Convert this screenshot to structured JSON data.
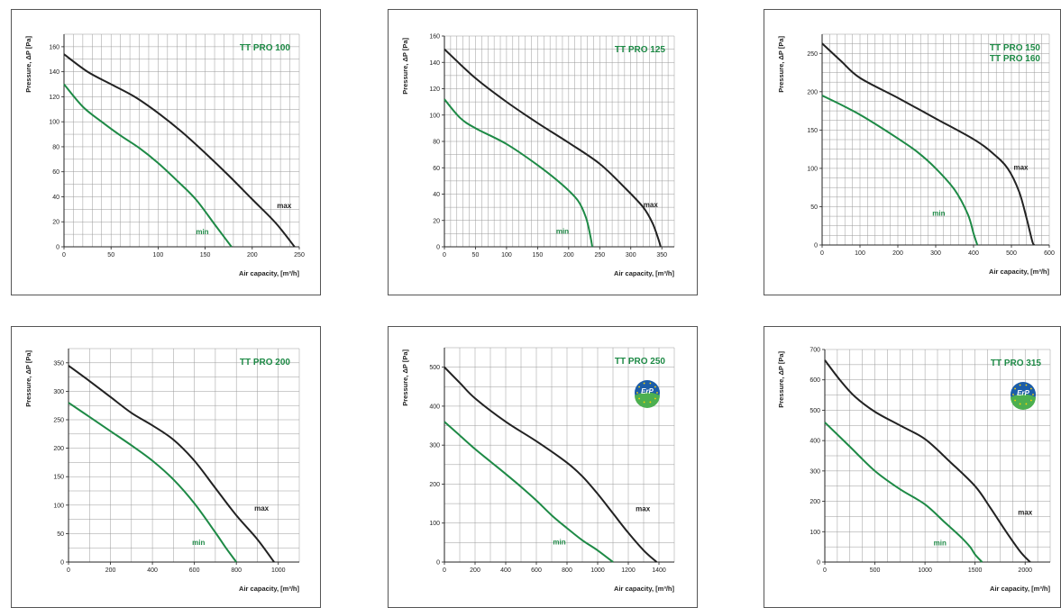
{
  "chart_data": [
    {
      "type": "line",
      "title": "TT PRO 100",
      "title_lines": [
        "TT PRO 100"
      ],
      "xlabel": "Air capacity, [m³/h]",
      "ylabel": "Pressure, ΔP [Pa]",
      "xlim": [
        0,
        250
      ],
      "ylim": [
        0,
        170
      ],
      "xticks": [
        0,
        50,
        100,
        150,
        200,
        250
      ],
      "yticks": [
        0,
        20,
        40,
        60,
        80,
        100,
        120,
        140,
        160
      ],
      "x_minor": 10,
      "y_minor": 10,
      "erp_badge": false,
      "series": [
        {
          "name": "max",
          "label_at": [
            234,
            31
          ],
          "points": [
            [
              0,
              154
            ],
            [
              25,
              140
            ],
            [
              50,
              130
            ],
            [
              75,
              120
            ],
            [
              100,
              107
            ],
            [
              125,
              92
            ],
            [
              150,
              75
            ],
            [
              175,
              57
            ],
            [
              200,
              38
            ],
            [
              225,
              19
            ],
            [
              245,
              0
            ]
          ]
        },
        {
          "name": "min",
          "label_at": [
            147,
            10
          ],
          "points": [
            [
              0,
              130
            ],
            [
              20,
              112
            ],
            [
              40,
              100
            ],
            [
              60,
              89
            ],
            [
              80,
              79
            ],
            [
              100,
              67
            ],
            [
              120,
              53
            ],
            [
              140,
              38
            ],
            [
              160,
              18
            ],
            [
              172,
              6
            ],
            [
              178,
              0
            ]
          ]
        }
      ]
    },
    {
      "type": "line",
      "title": "TT PRO 125",
      "title_lines": [
        "TT PRO 125"
      ],
      "xlabel": "Air capacity, [m³/h]",
      "ylabel": "Pressure, ΔP [Pa]",
      "xlim": [
        0,
        370
      ],
      "ylim": [
        0,
        160
      ],
      "xticks": [
        0,
        50,
        100,
        150,
        200,
        250,
        300,
        350
      ],
      "yticks": [
        0,
        20,
        40,
        60,
        80,
        100,
        120,
        140,
        160
      ],
      "x_minor": 10,
      "y_minor": 10,
      "erp_badge": false,
      "series": [
        {
          "name": "max",
          "label_at": [
            332,
            30
          ],
          "points": [
            [
              0,
              150
            ],
            [
              50,
              128
            ],
            [
              100,
              110
            ],
            [
              150,
              94
            ],
            [
              200,
              79
            ],
            [
              250,
              63
            ],
            [
              290,
              45
            ],
            [
              320,
              30
            ],
            [
              335,
              18
            ],
            [
              345,
              5
            ],
            [
              348,
              0
            ]
          ]
        },
        {
          "name": "min",
          "label_at": [
            190,
            10
          ],
          "points": [
            [
              0,
              112
            ],
            [
              25,
              98
            ],
            [
              50,
              90
            ],
            [
              100,
              78
            ],
            [
              150,
              62
            ],
            [
              190,
              47
            ],
            [
              215,
              35
            ],
            [
              228,
              22
            ],
            [
              235,
              8
            ],
            [
              238,
              0
            ]
          ]
        }
      ]
    },
    {
      "type": "line",
      "title": "TT PRO 150 TT PRO 160",
      "title_lines": [
        "TT PRO 150",
        "TT PRO 160"
      ],
      "xlabel": "Air capacity, [m³/h]",
      "ylabel": "Pressure, ΔP [Pa]",
      "xlim": [
        0,
        600
      ],
      "ylim": [
        0,
        275
      ],
      "xticks": [
        0,
        100,
        200,
        300,
        400,
        500,
        600
      ],
      "yticks": [
        0,
        50,
        100,
        150,
        200,
        250
      ],
      "x_minor": 20,
      "y_minor": 12.5,
      "erp_badge": false,
      "series": [
        {
          "name": "max",
          "label_at": [
            525,
            98
          ],
          "points": [
            [
              0,
              263
            ],
            [
              50,
              240
            ],
            [
              100,
              218
            ],
            [
              200,
              192
            ],
            [
              300,
              165
            ],
            [
              400,
              138
            ],
            [
              450,
              120
            ],
            [
              490,
              100
            ],
            [
              520,
              70
            ],
            [
              540,
              35
            ],
            [
              555,
              5
            ],
            [
              560,
              0
            ]
          ]
        },
        {
          "name": "min",
          "label_at": [
            308,
            38
          ],
          "points": [
            [
              0,
              195
            ],
            [
              50,
              183
            ],
            [
              100,
              170
            ],
            [
              150,
              155
            ],
            [
              200,
              139
            ],
            [
              250,
              122
            ],
            [
              300,
              100
            ],
            [
              350,
              72
            ],
            [
              385,
              40
            ],
            [
              400,
              15
            ],
            [
              410,
              0
            ]
          ]
        }
      ]
    },
    {
      "type": "line",
      "title": "TT PRO 200",
      "title_lines": [
        "TT PRO 200"
      ],
      "xlabel": "Air capacity, [m³/h]",
      "ylabel": "Pressure, ΔP [Pa]",
      "xlim": [
        0,
        1100
      ],
      "ylim": [
        0,
        375
      ],
      "xticks": [
        0,
        200,
        400,
        600,
        800,
        1000
      ],
      "yticks": [
        0,
        50,
        100,
        150,
        200,
        250,
        300,
        350
      ],
      "x_minor": 100,
      "y_minor": 25,
      "erp_badge": false,
      "series": [
        {
          "name": "max",
          "label_at": [
            920,
            90
          ],
          "points": [
            [
              0,
              345
            ],
            [
              100,
              318
            ],
            [
              200,
              290
            ],
            [
              300,
              262
            ],
            [
              400,
              240
            ],
            [
              500,
              215
            ],
            [
              600,
              178
            ],
            [
              700,
              130
            ],
            [
              800,
              82
            ],
            [
              900,
              40
            ],
            [
              980,
              0
            ]
          ]
        },
        {
          "name": "min",
          "label_at": [
            620,
            30
          ],
          "points": [
            [
              0,
              280
            ],
            [
              100,
              255
            ],
            [
              200,
              230
            ],
            [
              300,
              205
            ],
            [
              400,
              178
            ],
            [
              500,
              145
            ],
            [
              600,
              103
            ],
            [
              700,
              52
            ],
            [
              750,
              25
            ],
            [
              800,
              0
            ]
          ]
        }
      ]
    },
    {
      "type": "line",
      "title": "TT PRO 250",
      "title_lines": [
        "TT PRO 250"
      ],
      "xlabel": "Air capacity, [m³/h]",
      "ylabel": "Pressure, ΔP [Pa]",
      "xlim": [
        0,
        1500
      ],
      "ylim": [
        0,
        550
      ],
      "xticks": [
        0,
        200,
        400,
        600,
        800,
        1000,
        1200,
        1400
      ],
      "yticks": [
        0,
        100,
        200,
        300,
        400,
        500
      ],
      "x_minor": 100,
      "y_minor": 50,
      "erp_badge": true,
      "erp_text": "ErP",
      "series": [
        {
          "name": "max",
          "label_at": [
            1295,
            130
          ],
          "points": [
            [
              0,
              500
            ],
            [
              100,
              460
            ],
            [
              200,
              420
            ],
            [
              400,
              360
            ],
            [
              600,
              310
            ],
            [
              800,
              255
            ],
            [
              900,
              220
            ],
            [
              1000,
              175
            ],
            [
              1100,
              125
            ],
            [
              1200,
              75
            ],
            [
              1300,
              30
            ],
            [
              1385,
              0
            ]
          ]
        },
        {
          "name": "min",
          "label_at": [
            750,
            45
          ],
          "points": [
            [
              0,
              360
            ],
            [
              100,
              325
            ],
            [
              200,
              290
            ],
            [
              300,
              258
            ],
            [
              400,
              226
            ],
            [
              500,
              193
            ],
            [
              600,
              158
            ],
            [
              700,
              120
            ],
            [
              800,
              87
            ],
            [
              900,
              56
            ],
            [
              1000,
              30
            ],
            [
              1100,
              0
            ]
          ]
        }
      ]
    },
    {
      "type": "line",
      "title": "TT PRO 315",
      "title_lines": [
        "TT PRO 315"
      ],
      "xlabel": "Air capacity, [m³/h]",
      "ylabel": "Pressure, ΔP [Pa]",
      "xlim": [
        0,
        2250
      ],
      "ylim": [
        0,
        700
      ],
      "xticks": [
        0,
        500,
        1000,
        1500,
        2000
      ],
      "yticks": [
        0,
        100,
        200,
        300,
        400,
        500,
        600,
        700
      ],
      "x_minor": 125,
      "y_minor": 50,
      "erp_badge": true,
      "erp_text": "ErP",
      "series": [
        {
          "name": "max",
          "label_at": [
            2000,
            155
          ],
          "points": [
            [
              0,
              665
            ],
            [
              150,
              600
            ],
            [
              300,
              545
            ],
            [
              500,
              495
            ],
            [
              750,
              450
            ],
            [
              1000,
              405
            ],
            [
              1250,
              330
            ],
            [
              1500,
              250
            ],
            [
              1650,
              180
            ],
            [
              1800,
              105
            ],
            [
              1950,
              35
            ],
            [
              2050,
              0
            ]
          ]
        },
        {
          "name": "min",
          "label_at": [
            1150,
            55
          ],
          "points": [
            [
              0,
              460
            ],
            [
              250,
              380
            ],
            [
              500,
              300
            ],
            [
              750,
              240
            ],
            [
              1000,
              190
            ],
            [
              1200,
              130
            ],
            [
              1350,
              85
            ],
            [
              1450,
              50
            ],
            [
              1500,
              25
            ],
            [
              1570,
              0
            ]
          ]
        }
      ]
    }
  ],
  "colors": {
    "max": "#222222",
    "min": "#1e8a46",
    "grid": "#9a9a9a",
    "frame": "#555555"
  }
}
